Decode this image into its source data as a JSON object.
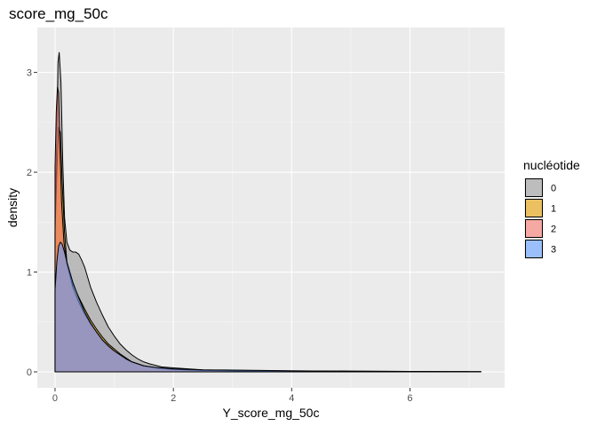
{
  "chart_data": {
    "type": "area",
    "title": "score_mg_50c",
    "xlabel": "Y_score_mg_50c",
    "ylabel": "density",
    "xlim": [
      -0.3,
      7.6
    ],
    "ylim": [
      -0.16,
      3.45
    ],
    "x_ticks": [
      0,
      2,
      4,
      6
    ],
    "y_ticks": [
      0,
      1,
      2,
      3
    ],
    "grid": true,
    "legend": {
      "title": "nucléotide",
      "placement": "right",
      "entries": [
        "0",
        "1",
        "2",
        "3"
      ]
    },
    "series": [
      {
        "label": "0",
        "fill": "#999999",
        "points": [
          [
            0,
            1.5
          ],
          [
            0.03,
            2.4
          ],
          [
            0.05,
            3.1
          ],
          [
            0.07,
            3.2
          ],
          [
            0.1,
            2.9
          ],
          [
            0.13,
            2.1
          ],
          [
            0.16,
            1.55
          ],
          [
            0.2,
            1.3
          ],
          [
            0.25,
            1.22
          ],
          [
            0.3,
            1.2
          ],
          [
            0.35,
            1.2
          ],
          [
            0.4,
            1.18
          ],
          [
            0.45,
            1.12
          ],
          [
            0.5,
            1.05
          ],
          [
            0.55,
            0.95
          ],
          [
            0.6,
            0.85
          ],
          [
            0.7,
            0.7
          ],
          [
            0.8,
            0.57
          ],
          [
            0.9,
            0.45
          ],
          [
            1.0,
            0.36
          ],
          [
            1.1,
            0.28
          ],
          [
            1.2,
            0.22
          ],
          [
            1.3,
            0.17
          ],
          [
            1.4,
            0.13
          ],
          [
            1.5,
            0.1
          ],
          [
            1.6,
            0.08
          ],
          [
            1.8,
            0.05
          ],
          [
            2.0,
            0.04
          ],
          [
            2.5,
            0.02
          ],
          [
            3,
            0.015
          ],
          [
            4,
            0.01
          ],
          [
            5,
            0.008
          ],
          [
            6,
            0.005
          ],
          [
            7.2,
            0.003
          ]
        ]
      },
      {
        "label": "1",
        "fill": "#E69F00",
        "points": [
          [
            0,
            1.4
          ],
          [
            0.03,
            2.0
          ],
          [
            0.06,
            2.45
          ],
          [
            0.09,
            2.4
          ],
          [
            0.12,
            1.9
          ],
          [
            0.16,
            1.4
          ],
          [
            0.2,
            1.1
          ],
          [
            0.3,
            0.88
          ],
          [
            0.4,
            0.75
          ],
          [
            0.5,
            0.63
          ],
          [
            0.6,
            0.52
          ],
          [
            0.7,
            0.43
          ],
          [
            0.8,
            0.35
          ],
          [
            0.9,
            0.28
          ],
          [
            1.0,
            0.23
          ],
          [
            1.1,
            0.18
          ],
          [
            1.2,
            0.14
          ],
          [
            1.3,
            0.1
          ],
          [
            1.4,
            0.08
          ],
          [
            1.5,
            0.06
          ],
          [
            1.7,
            0.04
          ],
          [
            2.0,
            0.025
          ],
          [
            2.5,
            0.015
          ],
          [
            3,
            0.01
          ],
          [
            4,
            0.006
          ],
          [
            5.5,
            0.003
          ]
        ]
      },
      {
        "label": "2",
        "fill": "#F8766D",
        "points": [
          [
            0,
            2.05
          ],
          [
            0.02,
            2.6
          ],
          [
            0.04,
            2.85
          ],
          [
            0.06,
            2.8
          ],
          [
            0.08,
            2.3
          ],
          [
            0.11,
            1.7
          ],
          [
            0.15,
            1.3
          ],
          [
            0.2,
            1.08
          ],
          [
            0.3,
            0.85
          ],
          [
            0.4,
            0.7
          ],
          [
            0.5,
            0.58
          ],
          [
            0.6,
            0.48
          ],
          [
            0.7,
            0.4
          ],
          [
            0.8,
            0.32
          ],
          [
            0.9,
            0.26
          ],
          [
            1.0,
            0.21
          ],
          [
            1.1,
            0.17
          ],
          [
            1.2,
            0.13
          ],
          [
            1.3,
            0.1
          ],
          [
            1.4,
            0.08
          ],
          [
            1.5,
            0.06
          ],
          [
            1.7,
            0.04
          ],
          [
            2.0,
            0.025
          ],
          [
            2.5,
            0.015
          ],
          [
            3,
            0.01
          ],
          [
            4,
            0.006
          ],
          [
            5.5,
            0.003
          ]
        ]
      },
      {
        "label": "3",
        "fill": "#619CFF",
        "points": [
          [
            0,
            0.82
          ],
          [
            0.03,
            1.1
          ],
          [
            0.06,
            1.26
          ],
          [
            0.09,
            1.3
          ],
          [
            0.12,
            1.28
          ],
          [
            0.16,
            1.2
          ],
          [
            0.2,
            1.1
          ],
          [
            0.3,
            0.9
          ],
          [
            0.4,
            0.74
          ],
          [
            0.5,
            0.6
          ],
          [
            0.6,
            0.49
          ],
          [
            0.7,
            0.4
          ],
          [
            0.8,
            0.32
          ],
          [
            0.9,
            0.26
          ],
          [
            1.0,
            0.21
          ],
          [
            1.1,
            0.17
          ],
          [
            1.2,
            0.13
          ],
          [
            1.3,
            0.1
          ],
          [
            1.4,
            0.08
          ],
          [
            1.5,
            0.06
          ],
          [
            1.7,
            0.045
          ],
          [
            2.0,
            0.03
          ],
          [
            2.5,
            0.02
          ],
          [
            3,
            0.018
          ],
          [
            3.5,
            0.014
          ],
          [
            4,
            0.01
          ],
          [
            5,
            0.006
          ],
          [
            6,
            0.004
          ],
          [
            7,
            0.002
          ]
        ]
      }
    ]
  }
}
